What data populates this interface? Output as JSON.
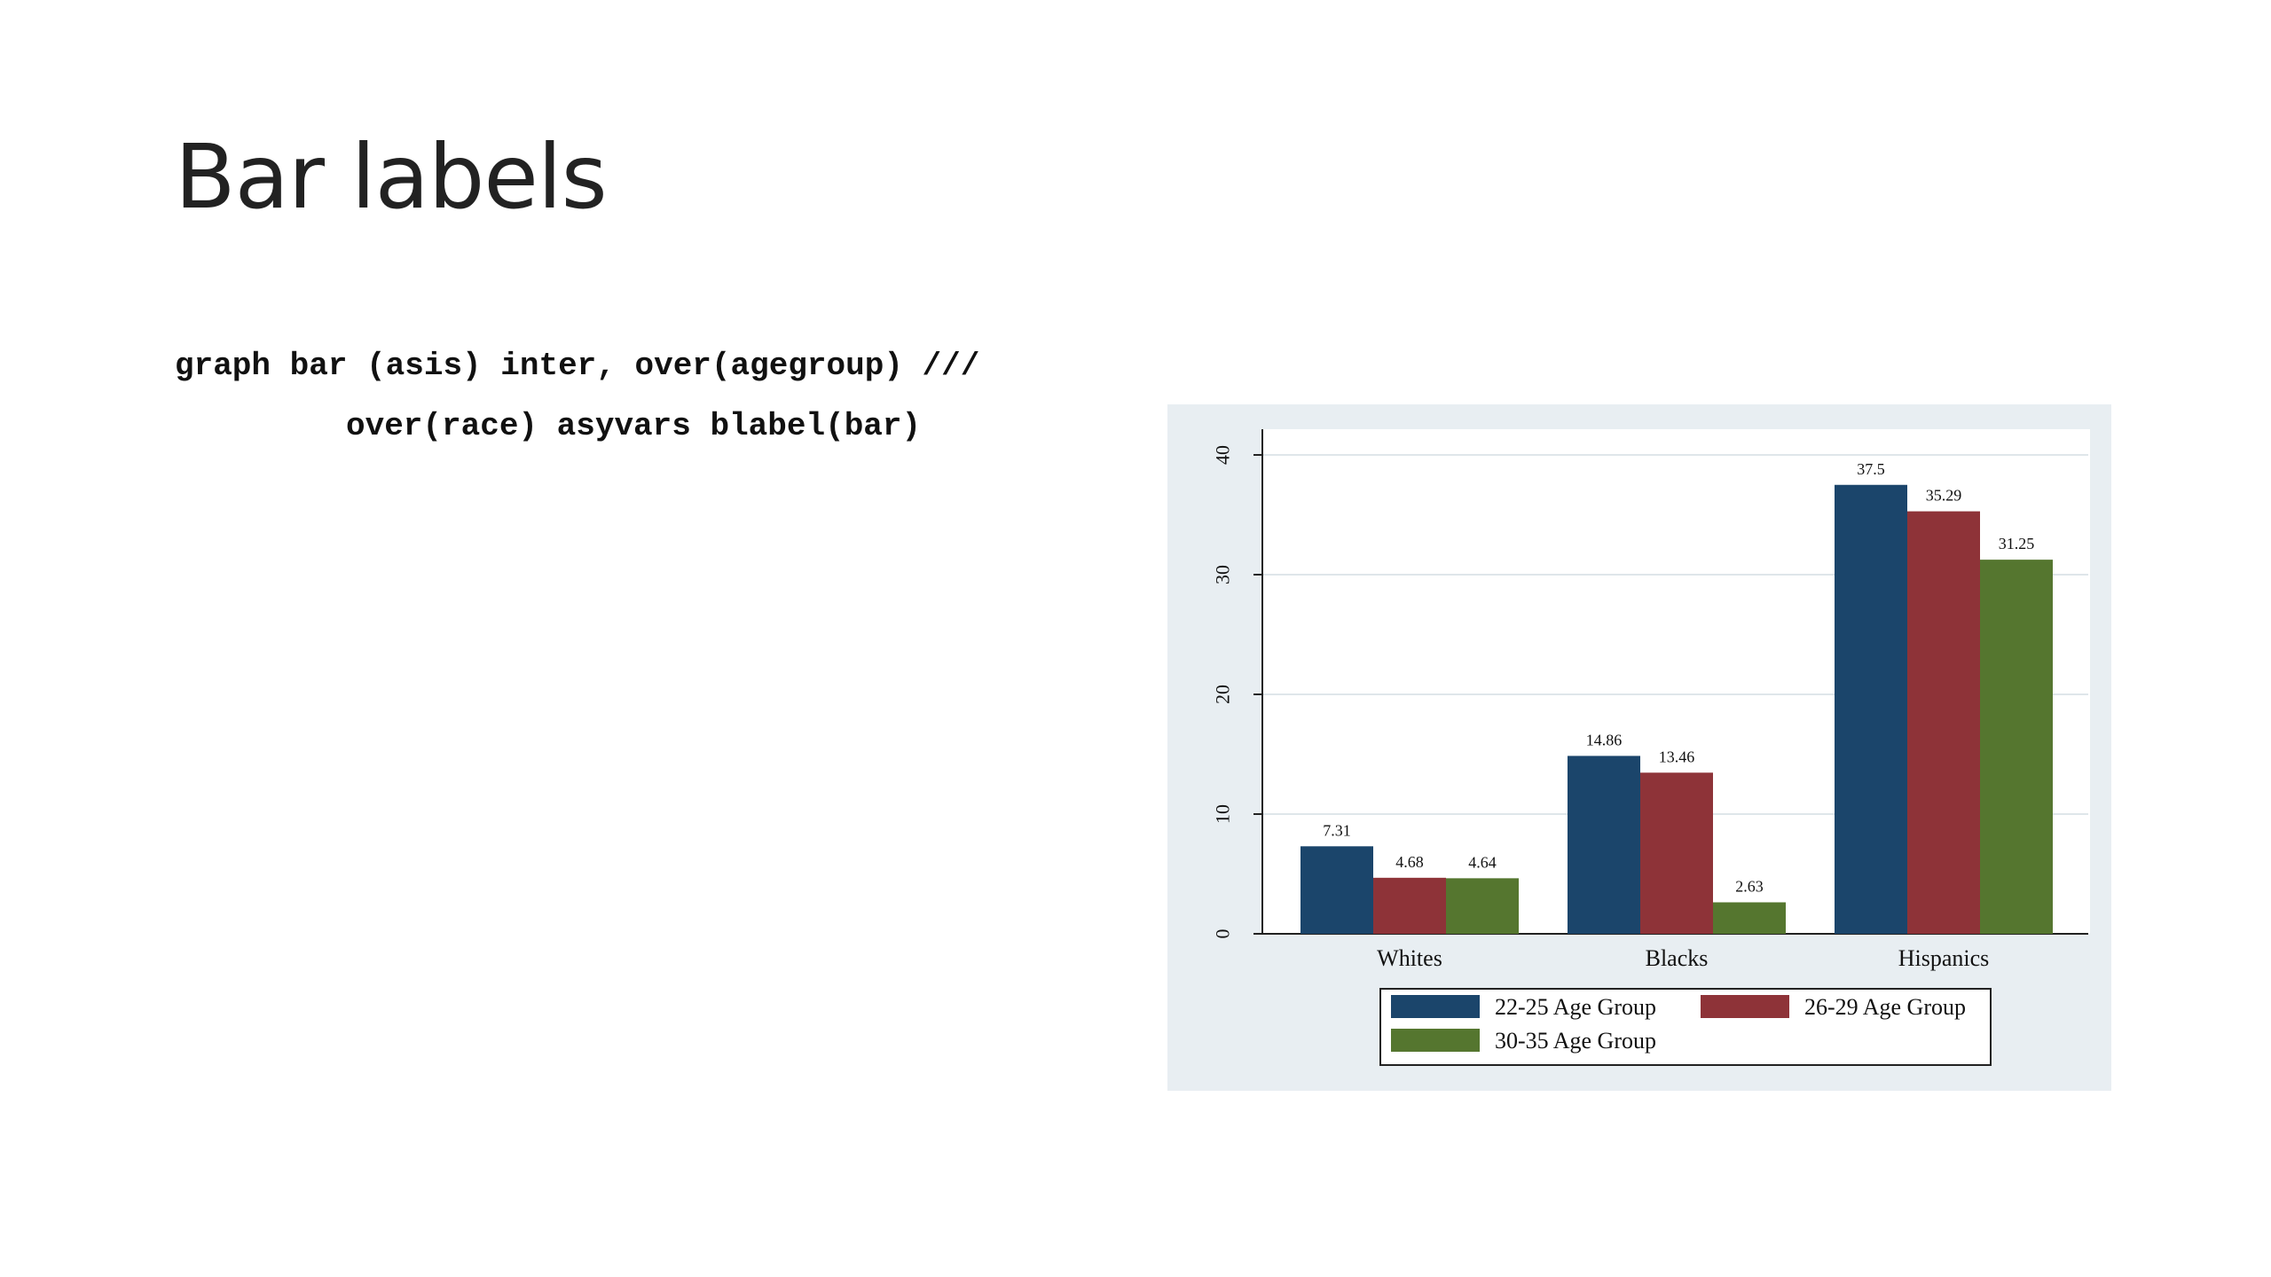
{
  "slide": {
    "title": "Bar labels",
    "code_line_1": "graph bar (asis) inter, over(agegroup) ///",
    "code_line_2": "over(race) asyvars blabel(bar)"
  },
  "chart_data": {
    "type": "bar",
    "categories": [
      "Whites",
      "Blacks",
      "Hispanics"
    ],
    "series": [
      {
        "name": "22-25 Age Group",
        "values": [
          7.31,
          14.86,
          37.5
        ],
        "labels": [
          "7.31",
          "14.86",
          "37.5"
        ],
        "color": "#1b456b"
      },
      {
        "name": "26-29 Age Group",
        "values": [
          4.68,
          13.46,
          35.29
        ],
        "labels": [
          "4.68",
          "13.46",
          "35.29"
        ],
        "color": "#8e3338"
      },
      {
        "name": "30-35 Age Group",
        "values": [
          4.64,
          2.63,
          31.25
        ],
        "labels": [
          "4.64",
          "2.63",
          "31.25"
        ],
        "color": "#55762f"
      }
    ],
    "ylim": [
      0,
      40
    ],
    "yticks": [
      "0",
      "10",
      "20",
      "30",
      "40"
    ],
    "grid": true,
    "legend_position": "bottom",
    "background_color": "#e8eef2",
    "plot_background_color": "#ffffff"
  }
}
